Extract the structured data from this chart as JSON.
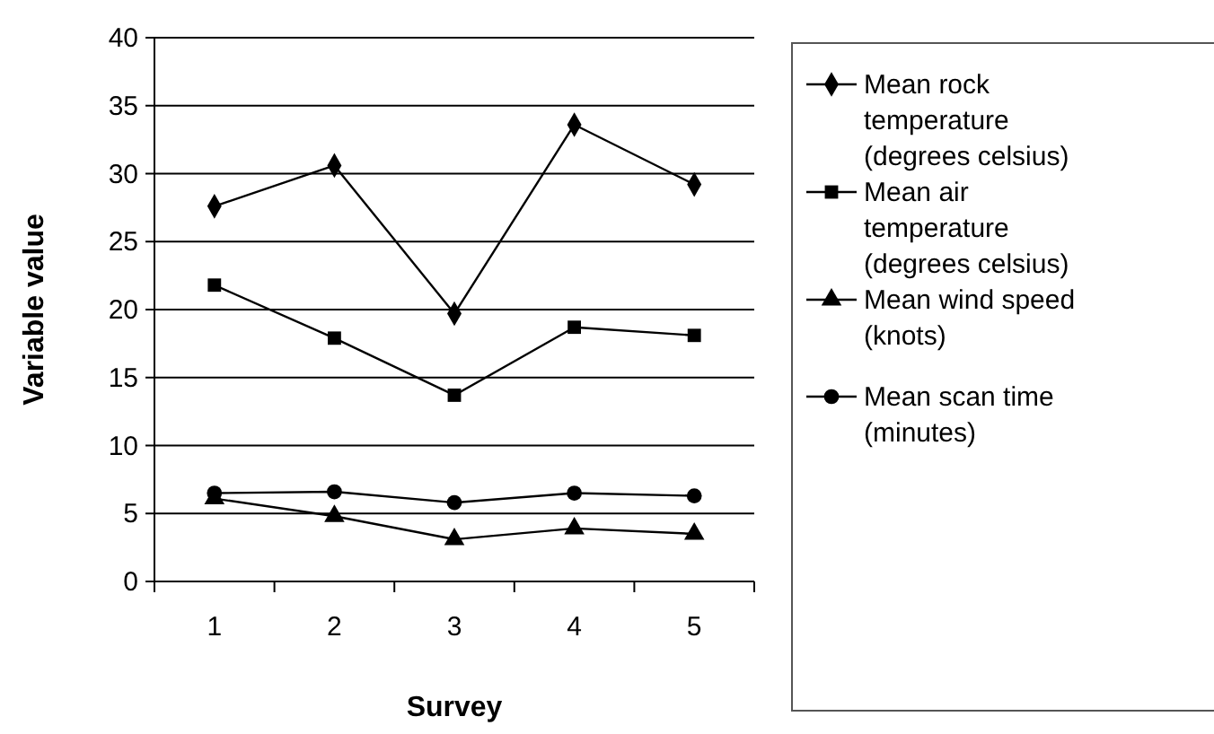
{
  "chart_data": {
    "type": "line",
    "xlabel": "Survey",
    "ylabel": "Variable value",
    "categories": [
      "1",
      "2",
      "3",
      "4",
      "5"
    ],
    "ylim": [
      0,
      40
    ],
    "yticks": [
      0,
      5,
      10,
      15,
      20,
      25,
      30,
      35,
      40
    ],
    "grid": "y",
    "legend": "right",
    "line_style": "solid",
    "series": [
      {
        "name": "Mean rock temperature (degrees celsius)",
        "color": "#000000",
        "marker": "diamond",
        "values": [
          27.6,
          30.6,
          19.7,
          33.6,
          29.2
        ]
      },
      {
        "name": "Mean air temperature (degrees celsius)",
        "color": "#000000",
        "marker": "square",
        "values": [
          21.8,
          17.9,
          13.7,
          18.7,
          18.1
        ]
      },
      {
        "name": "Mean wind speed (knots)",
        "color": "#000000",
        "marker": "triangle",
        "values": [
          6.1,
          4.8,
          3.1,
          3.9,
          3.5
        ]
      },
      {
        "name": "Mean scan time (minutes)",
        "color": "#000000",
        "marker": "circle",
        "values": [
          6.5,
          6.6,
          5.8,
          6.5,
          6.3
        ]
      }
    ]
  }
}
